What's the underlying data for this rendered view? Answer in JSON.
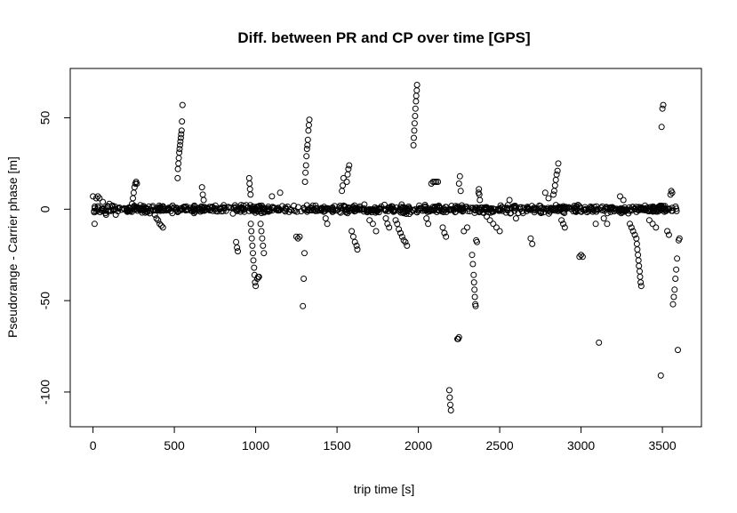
{
  "chart_data": {
    "type": "scatter",
    "title": "Diff. between PR and CP over time [GPS]",
    "xlabel": "trip time [s]",
    "ylabel": "Pseudorange - Carrier phase [m]",
    "xlim": [
      -140,
      3740
    ],
    "ylim": [
      -119,
      77
    ],
    "xticks": [
      0,
      500,
      1000,
      1500,
      2000,
      2500,
      3000,
      3500
    ],
    "yticks": [
      -100,
      -50,
      0,
      50
    ],
    "marker": "open-circle",
    "marker_color": "#000000",
    "grid": false,
    "legend": "none",
    "band": {
      "x_range": [
        0,
        3600
      ],
      "y_range": [
        -3,
        3
      ],
      "note": "dense cluster of points around 0 for the whole trip"
    },
    "points": [
      [
        0,
        7
      ],
      [
        10,
        -8
      ],
      [
        20,
        6
      ],
      [
        30,
        7
      ],
      [
        40,
        6
      ],
      [
        60,
        4
      ],
      [
        80,
        -3
      ],
      [
        100,
        3
      ],
      [
        120,
        2
      ],
      [
        140,
        -3
      ],
      [
        240,
        3
      ],
      [
        245,
        6
      ],
      [
        250,
        9
      ],
      [
        255,
        12
      ],
      [
        260,
        14
      ],
      [
        265,
        15
      ],
      [
        270,
        14
      ],
      [
        380,
        -3
      ],
      [
        390,
        -5
      ],
      [
        400,
        -6
      ],
      [
        410,
        -8
      ],
      [
        420,
        -9
      ],
      [
        430,
        -10
      ],
      [
        520,
        17
      ],
      [
        522,
        22
      ],
      [
        525,
        25
      ],
      [
        527,
        28
      ],
      [
        530,
        31
      ],
      [
        532,
        33
      ],
      [
        535,
        35
      ],
      [
        537,
        37
      ],
      [
        540,
        39
      ],
      [
        542,
        41
      ],
      [
        545,
        43
      ],
      [
        547,
        48
      ],
      [
        550,
        57
      ],
      [
        670,
        12
      ],
      [
        675,
        8
      ],
      [
        680,
        5
      ],
      [
        880,
        -18
      ],
      [
        885,
        -21
      ],
      [
        890,
        -23
      ],
      [
        960,
        17
      ],
      [
        962,
        14
      ],
      [
        965,
        11
      ],
      [
        968,
        8
      ],
      [
        970,
        -8
      ],
      [
        973,
        -12
      ],
      [
        976,
        -16
      ],
      [
        980,
        -20
      ],
      [
        983,
        -24
      ],
      [
        986,
        -28
      ],
      [
        990,
        -32
      ],
      [
        993,
        -36
      ],
      [
        996,
        -40
      ],
      [
        1000,
        -42
      ],
      [
        1010,
        -38
      ],
      [
        1015,
        -37
      ],
      [
        1020,
        -37
      ],
      [
        1030,
        -8
      ],
      [
        1035,
        -12
      ],
      [
        1040,
        -16
      ],
      [
        1045,
        -20
      ],
      [
        1050,
        -24
      ],
      [
        1100,
        7
      ],
      [
        1150,
        9
      ],
      [
        1250,
        -15
      ],
      [
        1260,
        -16
      ],
      [
        1270,
        -15
      ],
      [
        1290,
        -53
      ],
      [
        1295,
        -38
      ],
      [
        1300,
        -24
      ],
      [
        1303,
        15
      ],
      [
        1306,
        20
      ],
      [
        1309,
        24
      ],
      [
        1312,
        29
      ],
      [
        1315,
        33
      ],
      [
        1318,
        35
      ],
      [
        1321,
        38
      ],
      [
        1324,
        43
      ],
      [
        1327,
        46
      ],
      [
        1330,
        49
      ],
      [
        1430,
        -5
      ],
      [
        1440,
        -8
      ],
      [
        1530,
        10
      ],
      [
        1535,
        13
      ],
      [
        1540,
        17
      ],
      [
        1560,
        15
      ],
      [
        1565,
        19
      ],
      [
        1570,
        22
      ],
      [
        1575,
        24
      ],
      [
        1590,
        -12
      ],
      [
        1600,
        -15
      ],
      [
        1610,
        -18
      ],
      [
        1620,
        -20
      ],
      [
        1625,
        -22
      ],
      [
        1700,
        -6
      ],
      [
        1720,
        -8
      ],
      [
        1740,
        -12
      ],
      [
        1800,
        -5
      ],
      [
        1810,
        -8
      ],
      [
        1820,
        -10
      ],
      [
        1860,
        -6
      ],
      [
        1870,
        -8
      ],
      [
        1880,
        -11
      ],
      [
        1890,
        -13
      ],
      [
        1900,
        -15
      ],
      [
        1910,
        -17
      ],
      [
        1920,
        -18
      ],
      [
        1930,
        -20
      ],
      [
        1970,
        35
      ],
      [
        1972,
        39
      ],
      [
        1975,
        43
      ],
      [
        1977,
        47
      ],
      [
        1980,
        51
      ],
      [
        1982,
        55
      ],
      [
        1985,
        59
      ],
      [
        1987,
        62
      ],
      [
        1990,
        65
      ],
      [
        1992,
        68
      ],
      [
        2050,
        -5
      ],
      [
        2060,
        -8
      ],
      [
        2080,
        14
      ],
      [
        2090,
        15
      ],
      [
        2100,
        15
      ],
      [
        2110,
        15
      ],
      [
        2120,
        15
      ],
      [
        2150,
        -10
      ],
      [
        2160,
        -13
      ],
      [
        2170,
        -15
      ],
      [
        2190,
        -99
      ],
      [
        2193,
        -103
      ],
      [
        2196,
        -107
      ],
      [
        2200,
        -110
      ],
      [
        2240,
        -71
      ],
      [
        2245,
        -71
      ],
      [
        2250,
        -70
      ],
      [
        2250,
        14
      ],
      [
        2255,
        18
      ],
      [
        2260,
        10
      ],
      [
        2280,
        -12
      ],
      [
        2300,
        -10
      ],
      [
        2330,
        -25
      ],
      [
        2335,
        -30
      ],
      [
        2340,
        -36
      ],
      [
        2342,
        -40
      ],
      [
        2345,
        -44
      ],
      [
        2347,
        -48
      ],
      [
        2350,
        -52
      ],
      [
        2352,
        -53
      ],
      [
        2355,
        -17
      ],
      [
        2360,
        -18
      ],
      [
        2370,
        9
      ],
      [
        2372,
        11
      ],
      [
        2375,
        8
      ],
      [
        2378,
        5
      ],
      [
        2420,
        -4
      ],
      [
        2440,
        -6
      ],
      [
        2460,
        -8
      ],
      [
        2480,
        -10
      ],
      [
        2500,
        -12
      ],
      [
        2560,
        5
      ],
      [
        2600,
        -5
      ],
      [
        2690,
        -16
      ],
      [
        2700,
        -19
      ],
      [
        2780,
        9
      ],
      [
        2800,
        6
      ],
      [
        2830,
        8
      ],
      [
        2835,
        10
      ],
      [
        2840,
        13
      ],
      [
        2845,
        16
      ],
      [
        2850,
        19
      ],
      [
        2855,
        21
      ],
      [
        2860,
        25
      ],
      [
        2880,
        -6
      ],
      [
        2890,
        -8
      ],
      [
        2900,
        -10
      ],
      [
        2990,
        -26
      ],
      [
        3000,
        -25
      ],
      [
        3010,
        -26
      ],
      [
        3090,
        -8
      ],
      [
        3110,
        -73
      ],
      [
        3140,
        -5
      ],
      [
        3160,
        -8
      ],
      [
        3240,
        7
      ],
      [
        3260,
        5
      ],
      [
        3300,
        -8
      ],
      [
        3310,
        -10
      ],
      [
        3320,
        -12
      ],
      [
        3330,
        -14
      ],
      [
        3340,
        -16
      ],
      [
        3343,
        -19
      ],
      [
        3346,
        -22
      ],
      [
        3350,
        -25
      ],
      [
        3353,
        -28
      ],
      [
        3356,
        -31
      ],
      [
        3360,
        -34
      ],
      [
        3363,
        -37
      ],
      [
        3366,
        -40
      ],
      [
        3370,
        -42
      ],
      [
        3420,
        -6
      ],
      [
        3440,
        -8
      ],
      [
        3460,
        -10
      ],
      [
        3490,
        -91
      ],
      [
        3495,
        45
      ],
      [
        3500,
        55
      ],
      [
        3505,
        57
      ],
      [
        3530,
        -12
      ],
      [
        3540,
        -14
      ],
      [
        3550,
        8
      ],
      [
        3555,
        10
      ],
      [
        3560,
        9
      ],
      [
        3565,
        -52
      ],
      [
        3570,
        -48
      ],
      [
        3575,
        -44
      ],
      [
        3580,
        -38
      ],
      [
        3585,
        -33
      ],
      [
        3590,
        -27
      ],
      [
        3595,
        -77
      ],
      [
        3600,
        -17
      ],
      [
        3605,
        -16
      ]
    ]
  }
}
